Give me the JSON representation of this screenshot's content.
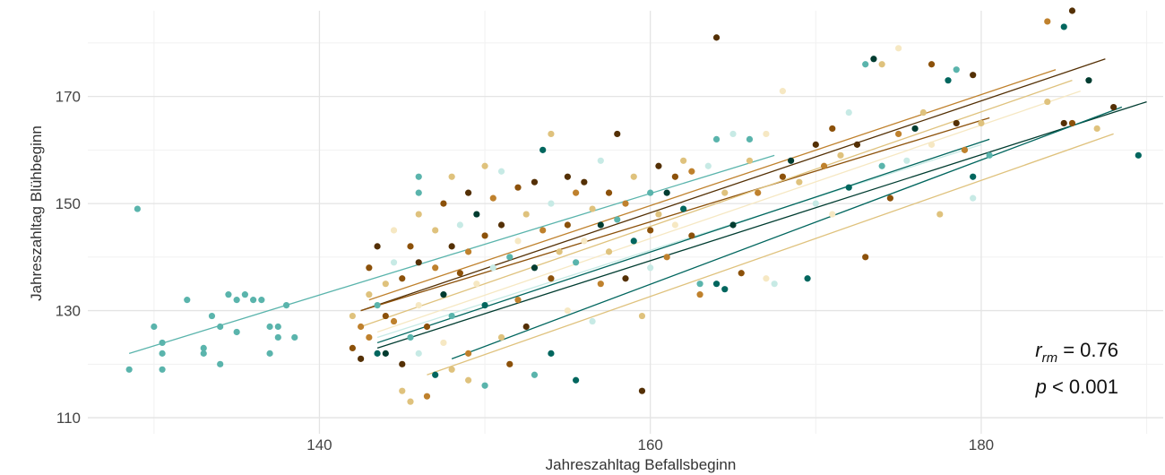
{
  "chart_data": {
    "type": "scatter",
    "xlabel": "Jahreszahltag Befallsbeginn",
    "ylabel": "Jahreszahltag Blühbeginn",
    "xlim": [
      126,
      191
    ],
    "ylim": [
      107,
      186
    ],
    "x_ticks": [
      140,
      160,
      180
    ],
    "y_ticks": [
      110,
      130,
      150,
      170
    ],
    "x_tick_labels": [
      "140",
      "160",
      "180"
    ],
    "y_tick_labels": [
      "110",
      "130",
      "150",
      "170"
    ],
    "grid": true,
    "legend": "none",
    "annotation": {
      "r_symbol": "r",
      "r_subscript": "rm",
      "r_text": " = 0.76",
      "p_symbol": "p",
      "p_text": " < 0.001"
    },
    "colors": {
      "dark_brown": "#543005",
      "brown": "#8c510a",
      "tan": "#bf812d",
      "light_tan": "#dfc27d",
      "cream": "#f6e8c3",
      "pale_teal": "#c7eae5",
      "teal": "#5ab4ac",
      "dark_teal": "#01665e",
      "darkest_teal": "#003c30"
    },
    "regression_lines": [
      {
        "color": "teal",
        "x": [
          128.5,
          167.5
        ],
        "y": [
          122,
          159
        ]
      },
      {
        "color": "dark_brown",
        "x": [
          142.5,
          187.5
        ],
        "y": [
          130,
          177
        ]
      },
      {
        "color": "brown",
        "x": [
          142.5,
          180.5
        ],
        "y": [
          130,
          166
        ]
      },
      {
        "color": "tan",
        "x": [
          143,
          184.5
        ],
        "y": [
          132,
          175
        ]
      },
      {
        "color": "light_tan",
        "x": [
          142.5,
          185.5
        ],
        "y": [
          127,
          173
        ]
      },
      {
        "color": "cream",
        "x": [
          143.5,
          186
        ],
        "y": [
          126,
          171
        ]
      },
      {
        "color": "pale_teal",
        "x": [
          143.5,
          180
        ],
        "y": [
          125,
          161
        ]
      },
      {
        "color": "dark_teal",
        "x": [
          143.5,
          180.5
        ],
        "y": [
          124,
          162
        ]
      },
      {
        "color": "darkest_teal",
        "x": [
          143.5,
          190
        ],
        "y": [
          123,
          169
        ]
      },
      {
        "color": "light_tan",
        "x": [
          146.5,
          188
        ],
        "y": [
          118,
          163
        ]
      },
      {
        "color": "dark_teal",
        "x": [
          148,
          188.5
        ],
        "y": [
          121,
          168
        ]
      }
    ],
    "points": [
      {
        "x": 129,
        "y": 149,
        "c": "teal"
      },
      {
        "x": 128.5,
        "y": 119,
        "c": "teal"
      },
      {
        "x": 130,
        "y": 127,
        "c": "teal"
      },
      {
        "x": 130.5,
        "y": 124,
        "c": "teal"
      },
      {
        "x": 130.5,
        "y": 119,
        "c": "teal"
      },
      {
        "x": 130.5,
        "y": 122,
        "c": "teal"
      },
      {
        "x": 132,
        "y": 132,
        "c": "teal"
      },
      {
        "x": 133,
        "y": 123,
        "c": "teal"
      },
      {
        "x": 133,
        "y": 122,
        "c": "teal"
      },
      {
        "x": 133.5,
        "y": 129,
        "c": "teal"
      },
      {
        "x": 134,
        "y": 127,
        "c": "teal"
      },
      {
        "x": 134,
        "y": 120,
        "c": "teal"
      },
      {
        "x": 134.5,
        "y": 133,
        "c": "teal"
      },
      {
        "x": 135,
        "y": 132,
        "c": "teal"
      },
      {
        "x": 135,
        "y": 126,
        "c": "teal"
      },
      {
        "x": 135.5,
        "y": 133,
        "c": "teal"
      },
      {
        "x": 136,
        "y": 132,
        "c": "teal"
      },
      {
        "x": 136.5,
        "y": 132,
        "c": "teal"
      },
      {
        "x": 137,
        "y": 127,
        "c": "teal"
      },
      {
        "x": 137.5,
        "y": 125,
        "c": "teal"
      },
      {
        "x": 137.5,
        "y": 127,
        "c": "teal"
      },
      {
        "x": 138,
        "y": 131,
        "c": "teal"
      },
      {
        "x": 138.5,
        "y": 125,
        "c": "teal"
      },
      {
        "x": 137,
        "y": 122,
        "c": "teal"
      },
      {
        "x": 142,
        "y": 123,
        "c": "brown"
      },
      {
        "x": 142,
        "y": 129,
        "c": "light_tan"
      },
      {
        "x": 142.5,
        "y": 121,
        "c": "dark_brown"
      },
      {
        "x": 142.5,
        "y": 127,
        "c": "tan"
      },
      {
        "x": 143,
        "y": 133,
        "c": "light_tan"
      },
      {
        "x": 143,
        "y": 138,
        "c": "brown"
      },
      {
        "x": 143,
        "y": 125,
        "c": "tan"
      },
      {
        "x": 143.5,
        "y": 131,
        "c": "teal"
      },
      {
        "x": 143.5,
        "y": 122,
        "c": "dark_teal"
      },
      {
        "x": 143.5,
        "y": 142,
        "c": "dark_brown"
      },
      {
        "x": 144,
        "y": 135,
        "c": "light_tan"
      },
      {
        "x": 144,
        "y": 129,
        "c": "brown"
      },
      {
        "x": 144,
        "y": 122,
        "c": "darkest_teal"
      },
      {
        "x": 144.5,
        "y": 145,
        "c": "cream"
      },
      {
        "x": 144.5,
        "y": 139,
        "c": "pale_teal"
      },
      {
        "x": 144.5,
        "y": 128,
        "c": "tan"
      },
      {
        "x": 145,
        "y": 115,
        "c": "light_tan"
      },
      {
        "x": 145,
        "y": 120,
        "c": "dark_brown"
      },
      {
        "x": 145,
        "y": 136,
        "c": "brown"
      },
      {
        "x": 145.5,
        "y": 142,
        "c": "brown"
      },
      {
        "x": 145.5,
        "y": 113,
        "c": "light_tan"
      },
      {
        "x": 145.5,
        "y": 125,
        "c": "teal"
      },
      {
        "x": 146,
        "y": 155,
        "c": "teal"
      },
      {
        "x": 146,
        "y": 152,
        "c": "teal"
      },
      {
        "x": 146,
        "y": 148,
        "c": "light_tan"
      },
      {
        "x": 146,
        "y": 139,
        "c": "dark_brown"
      },
      {
        "x": 146,
        "y": 131,
        "c": "cream"
      },
      {
        "x": 146,
        "y": 122,
        "c": "pale_teal"
      },
      {
        "x": 146.5,
        "y": 114,
        "c": "tan"
      },
      {
        "x": 146.5,
        "y": 127,
        "c": "brown"
      },
      {
        "x": 147,
        "y": 145,
        "c": "light_tan"
      },
      {
        "x": 147,
        "y": 138,
        "c": "tan"
      },
      {
        "x": 147,
        "y": 118,
        "c": "dark_teal"
      },
      {
        "x": 147.5,
        "y": 150,
        "c": "brown"
      },
      {
        "x": 147.5,
        "y": 133,
        "c": "darkest_teal"
      },
      {
        "x": 147.5,
        "y": 124,
        "c": "cream"
      },
      {
        "x": 148,
        "y": 155,
        "c": "light_tan"
      },
      {
        "x": 148,
        "y": 142,
        "c": "dark_brown"
      },
      {
        "x": 148,
        "y": 129,
        "c": "teal"
      },
      {
        "x": 148,
        "y": 119,
        "c": "light_tan"
      },
      {
        "x": 148.5,
        "y": 146,
        "c": "pale_teal"
      },
      {
        "x": 148.5,
        "y": 137,
        "c": "brown"
      },
      {
        "x": 149,
        "y": 152,
        "c": "dark_brown"
      },
      {
        "x": 149,
        "y": 141,
        "c": "tan"
      },
      {
        "x": 149,
        "y": 122,
        "c": "tan"
      },
      {
        "x": 149,
        "y": 117,
        "c": "light_tan"
      },
      {
        "x": 149.5,
        "y": 148,
        "c": "darkest_teal"
      },
      {
        "x": 149.5,
        "y": 135,
        "c": "cream"
      },
      {
        "x": 150,
        "y": 157,
        "c": "light_tan"
      },
      {
        "x": 150,
        "y": 144,
        "c": "brown"
      },
      {
        "x": 150,
        "y": 131,
        "c": "dark_teal"
      },
      {
        "x": 150,
        "y": 116,
        "c": "teal"
      },
      {
        "x": 150.5,
        "y": 151,
        "c": "tan"
      },
      {
        "x": 150.5,
        "y": 138,
        "c": "pale_teal"
      },
      {
        "x": 151,
        "y": 156,
        "c": "pale_teal"
      },
      {
        "x": 151,
        "y": 146,
        "c": "dark_brown"
      },
      {
        "x": 151,
        "y": 125,
        "c": "light_tan"
      },
      {
        "x": 151.5,
        "y": 140,
        "c": "teal"
      },
      {
        "x": 151.5,
        "y": 120,
        "c": "brown"
      },
      {
        "x": 152,
        "y": 153,
        "c": "brown"
      },
      {
        "x": 152,
        "y": 143,
        "c": "cream"
      },
      {
        "x": 152,
        "y": 132,
        "c": "tan"
      },
      {
        "x": 152.5,
        "y": 148,
        "c": "light_tan"
      },
      {
        "x": 152.5,
        "y": 127,
        "c": "dark_brown"
      },
      {
        "x": 153,
        "y": 154,
        "c": "dark_brown"
      },
      {
        "x": 153,
        "y": 138,
        "c": "darkest_teal"
      },
      {
        "x": 153,
        "y": 118,
        "c": "teal"
      },
      {
        "x": 153.5,
        "y": 160,
        "c": "dark_teal"
      },
      {
        "x": 153.5,
        "y": 145,
        "c": "tan"
      },
      {
        "x": 154,
        "y": 163,
        "c": "light_tan"
      },
      {
        "x": 154,
        "y": 150,
        "c": "pale_teal"
      },
      {
        "x": 154,
        "y": 136,
        "c": "brown"
      },
      {
        "x": 154,
        "y": 122,
        "c": "dark_teal"
      },
      {
        "x": 154.5,
        "y": 141,
        "c": "light_tan"
      },
      {
        "x": 155,
        "y": 155,
        "c": "dark_brown"
      },
      {
        "x": 155,
        "y": 146,
        "c": "brown"
      },
      {
        "x": 155,
        "y": 130,
        "c": "cream"
      },
      {
        "x": 155.5,
        "y": 152,
        "c": "tan"
      },
      {
        "x": 155.5,
        "y": 139,
        "c": "teal"
      },
      {
        "x": 155.5,
        "y": 117,
        "c": "dark_teal"
      },
      {
        "x": 156,
        "y": 154,
        "c": "dark_brown"
      },
      {
        "x": 156,
        "y": 143,
        "c": "cream"
      },
      {
        "x": 156.5,
        "y": 149,
        "c": "light_tan"
      },
      {
        "x": 156.5,
        "y": 128,
        "c": "pale_teal"
      },
      {
        "x": 157,
        "y": 158,
        "c": "pale_teal"
      },
      {
        "x": 157,
        "y": 146,
        "c": "darkest_teal"
      },
      {
        "x": 157,
        "y": 135,
        "c": "tan"
      },
      {
        "x": 157.5,
        "y": 152,
        "c": "brown"
      },
      {
        "x": 157.5,
        "y": 141,
        "c": "light_tan"
      },
      {
        "x": 158,
        "y": 163,
        "c": "dark_brown"
      },
      {
        "x": 158,
        "y": 147,
        "c": "teal"
      },
      {
        "x": 158.5,
        "y": 150,
        "c": "tan"
      },
      {
        "x": 158.5,
        "y": 136,
        "c": "dark_brown"
      },
      {
        "x": 159,
        "y": 155,
        "c": "light_tan"
      },
      {
        "x": 159,
        "y": 143,
        "c": "dark_teal"
      },
      {
        "x": 159.5,
        "y": 115,
        "c": "dark_brown"
      },
      {
        "x": 159.5,
        "y": 129,
        "c": "light_tan"
      },
      {
        "x": 160,
        "y": 152,
        "c": "teal"
      },
      {
        "x": 160,
        "y": 145,
        "c": "brown"
      },
      {
        "x": 160,
        "y": 138,
        "c": "pale_teal"
      },
      {
        "x": 160.5,
        "y": 157,
        "c": "dark_brown"
      },
      {
        "x": 160.5,
        "y": 148,
        "c": "light_tan"
      },
      {
        "x": 161,
        "y": 152,
        "c": "darkest_teal"
      },
      {
        "x": 161,
        "y": 140,
        "c": "tan"
      },
      {
        "x": 161.5,
        "y": 155,
        "c": "brown"
      },
      {
        "x": 161.5,
        "y": 146,
        "c": "cream"
      },
      {
        "x": 162,
        "y": 158,
        "c": "light_tan"
      },
      {
        "x": 162,
        "y": 149,
        "c": "dark_teal"
      },
      {
        "x": 162.5,
        "y": 156,
        "c": "tan"
      },
      {
        "x": 162.5,
        "y": 144,
        "c": "brown"
      },
      {
        "x": 163,
        "y": 135,
        "c": "teal"
      },
      {
        "x": 163,
        "y": 133,
        "c": "tan"
      },
      {
        "x": 163.5,
        "y": 157,
        "c": "pale_teal"
      },
      {
        "x": 164,
        "y": 181,
        "c": "dark_brown"
      },
      {
        "x": 164,
        "y": 162,
        "c": "teal"
      },
      {
        "x": 164,
        "y": 135,
        "c": "dark_teal"
      },
      {
        "x": 164.5,
        "y": 152,
        "c": "light_tan"
      },
      {
        "x": 164.5,
        "y": 134,
        "c": "dark_teal"
      },
      {
        "x": 165,
        "y": 163,
        "c": "pale_teal"
      },
      {
        "x": 165,
        "y": 146,
        "c": "darkest_teal"
      },
      {
        "x": 165.5,
        "y": 137,
        "c": "brown"
      },
      {
        "x": 166,
        "y": 162,
        "c": "teal"
      },
      {
        "x": 166,
        "y": 158,
        "c": "light_tan"
      },
      {
        "x": 166.5,
        "y": 152,
        "c": "tan"
      },
      {
        "x": 167,
        "y": 136,
        "c": "cream"
      },
      {
        "x": 167,
        "y": 163,
        "c": "cream"
      },
      {
        "x": 167.5,
        "y": 135,
        "c": "pale_teal"
      },
      {
        "x": 168,
        "y": 171,
        "c": "cream"
      },
      {
        "x": 168,
        "y": 155,
        "c": "brown"
      },
      {
        "x": 168.5,
        "y": 158,
        "c": "darkest_teal"
      },
      {
        "x": 169,
        "y": 154,
        "c": "light_tan"
      },
      {
        "x": 169.5,
        "y": 136,
        "c": "dark_teal"
      },
      {
        "x": 170,
        "y": 161,
        "c": "dark_brown"
      },
      {
        "x": 170,
        "y": 150,
        "c": "pale_teal"
      },
      {
        "x": 170.5,
        "y": 157,
        "c": "tan"
      },
      {
        "x": 171,
        "y": 164,
        "c": "brown"
      },
      {
        "x": 171,
        "y": 148,
        "c": "cream"
      },
      {
        "x": 171.5,
        "y": 159,
        "c": "light_tan"
      },
      {
        "x": 172,
        "y": 167,
        "c": "pale_teal"
      },
      {
        "x": 172,
        "y": 153,
        "c": "dark_teal"
      },
      {
        "x": 172.5,
        "y": 161,
        "c": "dark_brown"
      },
      {
        "x": 173,
        "y": 176,
        "c": "teal"
      },
      {
        "x": 173,
        "y": 140,
        "c": "brown"
      },
      {
        "x": 173.5,
        "y": 177,
        "c": "darkest_teal"
      },
      {
        "x": 174,
        "y": 176,
        "c": "light_tan"
      },
      {
        "x": 174,
        "y": 157,
        "c": "teal"
      },
      {
        "x": 174.5,
        "y": 151,
        "c": "brown"
      },
      {
        "x": 175,
        "y": 179,
        "c": "cream"
      },
      {
        "x": 175,
        "y": 163,
        "c": "tan"
      },
      {
        "x": 175.5,
        "y": 158,
        "c": "pale_teal"
      },
      {
        "x": 176,
        "y": 164,
        "c": "darkest_teal"
      },
      {
        "x": 176.5,
        "y": 167,
        "c": "light_tan"
      },
      {
        "x": 177,
        "y": 176,
        "c": "brown"
      },
      {
        "x": 177,
        "y": 161,
        "c": "cream"
      },
      {
        "x": 177.5,
        "y": 148,
        "c": "light_tan"
      },
      {
        "x": 178,
        "y": 173,
        "c": "dark_teal"
      },
      {
        "x": 178.5,
        "y": 175,
        "c": "teal"
      },
      {
        "x": 178.5,
        "y": 165,
        "c": "dark_brown"
      },
      {
        "x": 179,
        "y": 160,
        "c": "tan"
      },
      {
        "x": 179.5,
        "y": 174,
        "c": "dark_brown"
      },
      {
        "x": 179.5,
        "y": 155,
        "c": "dark_teal"
      },
      {
        "x": 179.5,
        "y": 151,
        "c": "pale_teal"
      },
      {
        "x": 180,
        "y": 165,
        "c": "light_tan"
      },
      {
        "x": 180.5,
        "y": 159,
        "c": "teal"
      },
      {
        "x": 184,
        "y": 184,
        "c": "tan"
      },
      {
        "x": 184,
        "y": 169,
        "c": "light_tan"
      },
      {
        "x": 185,
        "y": 183,
        "c": "dark_teal"
      },
      {
        "x": 185,
        "y": 165,
        "c": "dark_brown"
      },
      {
        "x": 185.5,
        "y": 186,
        "c": "dark_brown"
      },
      {
        "x": 185.5,
        "y": 165,
        "c": "brown"
      },
      {
        "x": 186.5,
        "y": 173,
        "c": "darkest_teal"
      },
      {
        "x": 187,
        "y": 164,
        "c": "light_tan"
      },
      {
        "x": 188,
        "y": 168,
        "c": "dark_brown"
      },
      {
        "x": 189.5,
        "y": 159,
        "c": "dark_teal"
      }
    ]
  }
}
